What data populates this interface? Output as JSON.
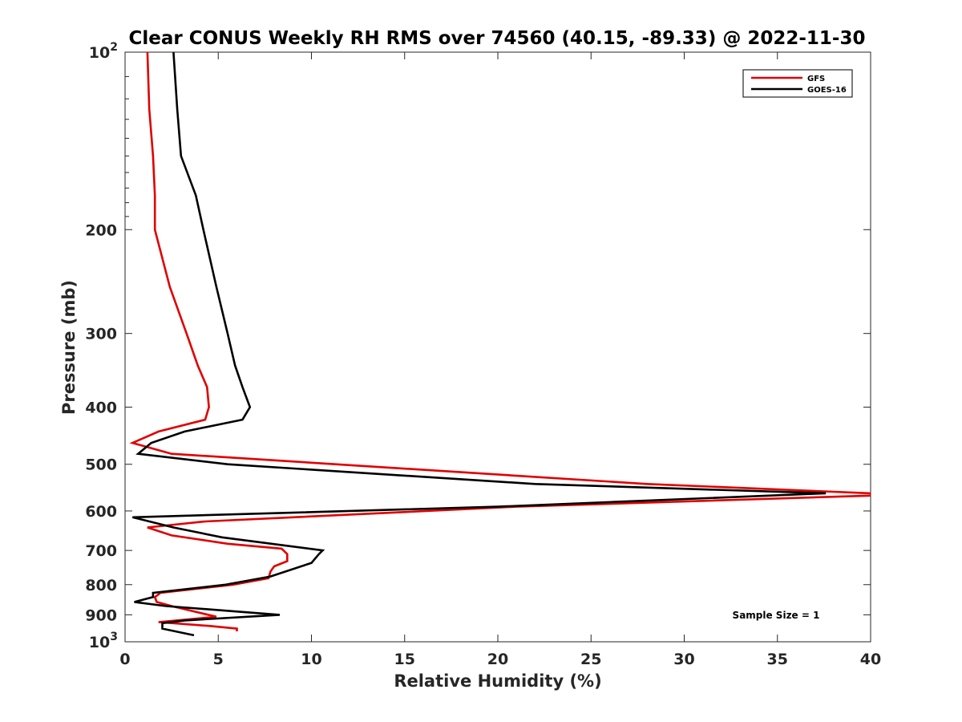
{
  "chart_data": {
    "type": "line",
    "title": "Clear CONUS Weekly RH RMS over 74560 (40.15, -89.33) @ 2022-11-30",
    "xlabel": "Relative Humidity (%)",
    "ylabel": "Pressure (mb)",
    "xlim": [
      0,
      40
    ],
    "ylim": [
      100,
      1000
    ],
    "y_scale": "log",
    "y_reversed": true,
    "grid": false,
    "legend_position": "top-right",
    "annotation": "Sample Size = 1",
    "x_ticks": [
      "0",
      "5",
      "10",
      "15",
      "20",
      "25",
      "30",
      "35",
      "40"
    ],
    "y_ticks": [
      {
        "value": 100,
        "base": "10",
        "exp": "2"
      },
      {
        "value": 200,
        "label": "200"
      },
      {
        "value": 300,
        "label": "300"
      },
      {
        "value": 400,
        "label": "400"
      },
      {
        "value": 500,
        "label": "500"
      },
      {
        "value": 600,
        "label": "600"
      },
      {
        "value": 700,
        "label": "700"
      },
      {
        "value": 800,
        "label": "800"
      },
      {
        "value": 900,
        "label": "900"
      },
      {
        "value": 1000,
        "base": "10",
        "exp": "3"
      }
    ],
    "series": [
      {
        "name": "GFS",
        "color": "#e00000",
        "points": [
          [
            1.2,
            100
          ],
          [
            1.3,
            125
          ],
          [
            1.5,
            150
          ],
          [
            1.6,
            175
          ],
          [
            1.6,
            200
          ],
          [
            2.4,
            250
          ],
          [
            3.3,
            300
          ],
          [
            3.9,
            340
          ],
          [
            4.4,
            370
          ],
          [
            4.5,
            400
          ],
          [
            4.3,
            420
          ],
          [
            1.8,
            440
          ],
          [
            0.4,
            460
          ],
          [
            2.5,
            480
          ],
          [
            28,
            540
          ],
          [
            40,
            560
          ],
          [
            40,
            565
          ],
          [
            21,
            590
          ],
          [
            4.3,
            625
          ],
          [
            1.2,
            640
          ],
          [
            2.5,
            660
          ],
          [
            5.5,
            682
          ],
          [
            8.4,
            695
          ],
          [
            8.7,
            710
          ],
          [
            8.7,
            730
          ],
          [
            8.0,
            745
          ],
          [
            7.8,
            760
          ],
          [
            7.7,
            780
          ],
          [
            5.8,
            800
          ],
          [
            1.9,
            826
          ],
          [
            1.6,
            840
          ],
          [
            1.7,
            856
          ],
          [
            2.5,
            870
          ],
          [
            4.9,
            907
          ],
          [
            1.8,
            926
          ],
          [
            4.5,
            940
          ],
          [
            6.0,
            950
          ],
          [
            6.0,
            960
          ]
        ]
      },
      {
        "name": "GOES-16",
        "color": "#000000",
        "points": [
          [
            2.6,
            100
          ],
          [
            2.8,
            125
          ],
          [
            3.0,
            150
          ],
          [
            3.8,
            175
          ],
          [
            4.2,
            200
          ],
          [
            4.9,
            250
          ],
          [
            5.5,
            300
          ],
          [
            5.9,
            340
          ],
          [
            6.3,
            370
          ],
          [
            6.7,
            400
          ],
          [
            6.3,
            420
          ],
          [
            3.2,
            440
          ],
          [
            1.4,
            460
          ],
          [
            0.7,
            480
          ],
          [
            5.5,
            500
          ],
          [
            22,
            540
          ],
          [
            37.6,
            560
          ],
          [
            20,
            590
          ],
          [
            0.4,
            615
          ],
          [
            2.6,
            640
          ],
          [
            5.2,
            665
          ],
          [
            10.6,
            700
          ],
          [
            10.4,
            710
          ],
          [
            10.0,
            735
          ],
          [
            7.8,
            775
          ],
          [
            5.4,
            800
          ],
          [
            1.5,
            826
          ],
          [
            1.5,
            840
          ],
          [
            0.5,
            856
          ],
          [
            2.2,
            870
          ],
          [
            8.3,
            900
          ],
          [
            3.2,
            920
          ],
          [
            2.0,
            930
          ],
          [
            2.0,
            950
          ],
          [
            3.7,
            975
          ]
        ]
      }
    ]
  }
}
